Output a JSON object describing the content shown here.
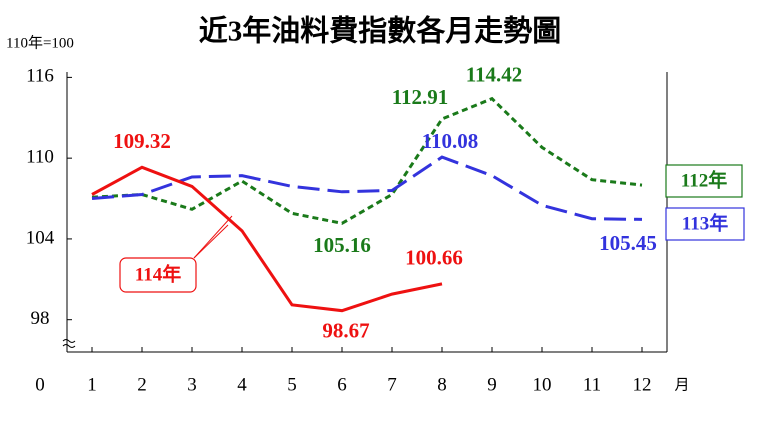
{
  "chart_data": {
    "type": "line",
    "title": "近3年油料費指數各月走勢圖",
    "y_note": "110年=100",
    "x_unit": "月",
    "axis_origin_label": "0",
    "x": [
      1,
      2,
      3,
      4,
      5,
      6,
      7,
      8,
      9,
      10,
      11,
      12
    ],
    "xlim": [
      0.5,
      12.5
    ],
    "xticks": [
      1,
      2,
      3,
      4,
      5,
      6,
      7,
      8,
      9,
      10,
      11,
      12
    ],
    "ylim": [
      95.6,
      116.4
    ],
    "yticks": [
      98,
      104,
      110,
      116
    ],
    "series": [
      {
        "name": "112年",
        "color": "#1a7a1a",
        "dash": "short",
        "values": [
          107.1,
          107.3,
          106.2,
          108.3,
          105.9,
          105.16,
          107.3,
          112.91,
          114.42,
          110.8,
          108.4,
          108.0
        ],
        "value_labels": [
          null,
          null,
          null,
          null,
          null,
          "105.16",
          null,
          "112.91",
          "114.42",
          null,
          null,
          null
        ]
      },
      {
        "name": "113年",
        "color": "#3333dd",
        "dash": "long",
        "values": [
          107.0,
          107.3,
          108.6,
          108.7,
          107.9,
          107.5,
          107.6,
          110.08,
          108.7,
          106.5,
          105.5,
          105.45
        ],
        "value_labels": [
          null,
          null,
          null,
          null,
          null,
          null,
          null,
          "110.08",
          null,
          null,
          null,
          "105.45"
        ]
      },
      {
        "name": "114年",
        "color": "#ee1111",
        "dash": "solid",
        "values": [
          107.3,
          109.32,
          107.9,
          104.6,
          99.1,
          98.67,
          99.9,
          100.66,
          null,
          null,
          null,
          null
        ],
        "value_labels": [
          null,
          "109.32",
          null,
          null,
          null,
          "98.67",
          null,
          "100.66",
          null,
          null,
          null,
          null
        ]
      }
    ]
  }
}
